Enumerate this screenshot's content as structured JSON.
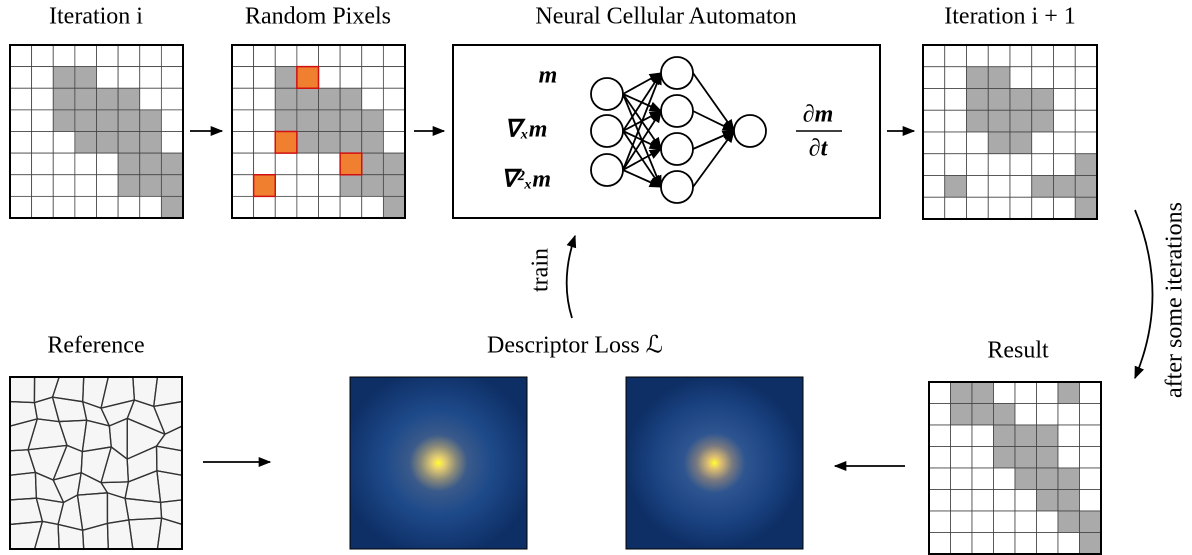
{
  "top": {
    "iteration": "Iteration i",
    "random_pixels": "Random Pixels",
    "nca": "Neural Cellular Automaton",
    "next_iteration": "Iteration i + 1"
  },
  "network": {
    "inputs": [
      "m",
      "∇ₓm",
      "∇²ₓm"
    ],
    "output": {
      "numerator": "∂m",
      "denominator": "∂t"
    }
  },
  "side": "after some iterations",
  "train": "train",
  "bottom": {
    "reference": "Reference",
    "loss": "Descriptor Loss ℒ",
    "result": "Result"
  }
}
